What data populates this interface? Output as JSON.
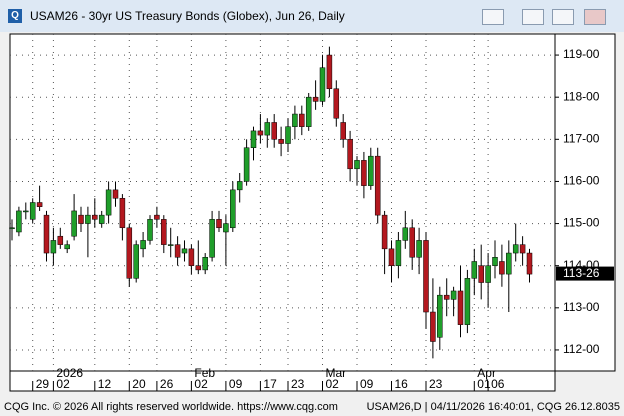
{
  "chart_data": {
    "type": "candlestick",
    "title": "USAM26 - 30yr US Treasury Bonds (Globex), Jun 26, Daily",
    "footer_left": "CQG Inc. © 2026 All rights reserved worldwide. https://www.cqg.com",
    "footer_right": "USAM26,D | 04/11/2026 16:40:01, CQG 26.12.8035",
    "up_color": "#1f9e2a",
    "down_color": "#b3181f",
    "grid": true,
    "categories": [
      null,
      null,
      null,
      "29",
      null,
      null,
      "02",
      null,
      null,
      null,
      null,
      null,
      "12",
      null,
      null,
      null,
      null,
      "20",
      null,
      null,
      null,
      "26",
      null,
      null,
      null,
      null,
      "02",
      null,
      null,
      null,
      null,
      "09",
      null,
      null,
      null,
      null,
      "17",
      null,
      null,
      null,
      "23",
      null,
      null,
      null,
      null,
      "02",
      null,
      null,
      null,
      null,
      "09",
      null,
      null,
      null,
      null,
      "16",
      null,
      null,
      null,
      null,
      "23",
      null,
      null,
      null,
      null,
      null,
      null,
      "01",
      null,
      "06",
      null,
      null,
      null,
      null,
      null,
      null
    ],
    "x_groups": [
      {
        "label": "2026",
        "start": 6
      },
      {
        "label": "Feb",
        "start": 26
      },
      {
        "label": "Mar",
        "start": 45
      },
      {
        "label": "Apr",
        "start": 67
      }
    ],
    "open": [
      114.9,
      114.8,
      115.3,
      115.1,
      115.5,
      115.2,
      114.3,
      114.7,
      114.4,
      114.7,
      115.2,
      115.0,
      115.2,
      115.0,
      115.2,
      115.8,
      115.6,
      114.9,
      113.7,
      114.4,
      114.6,
      115.2,
      115.1,
      114.5,
      114.5,
      114.3,
      114.4,
      114.0,
      113.9,
      114.2,
      115.1,
      114.8,
      114.9,
      115.8,
      116.0,
      116.8,
      117.2,
      117.1,
      117.4,
      117.0,
      116.9,
      117.3,
      117.6,
      117.3,
      118.0,
      117.9,
      119.0,
      118.2,
      117.4,
      117.0,
      116.3,
      116.5,
      115.9,
      116.6,
      115.2,
      114.4,
      114.0,
      114.6,
      114.9,
      114.2,
      114.6,
      112.9,
      112.3,
      113.3,
      113.2,
      113.4,
      112.6,
      113.7,
      114.0,
      113.6,
      114.0,
      114.1,
      113.8,
      114.3,
      114.5,
      114.3
    ],
    "high": [
      115.1,
      115.4,
      115.5,
      115.6,
      115.9,
      115.3,
      114.9,
      114.9,
      114.6,
      115.7,
      115.4,
      115.4,
      115.6,
      115.3,
      116.0,
      116.0,
      115.7,
      115.0,
      114.6,
      114.8,
      115.2,
      115.4,
      115.2,
      114.9,
      114.7,
      114.6,
      114.5,
      114.6,
      114.3,
      115.3,
      115.3,
      115.2,
      116.0,
      116.2,
      117.0,
      117.3,
      117.6,
      117.5,
      117.6,
      117.3,
      117.5,
      117.8,
      117.8,
      118.1,
      118.4,
      119.0,
      119.2,
      118.4,
      117.6,
      117.2,
      116.6,
      116.7,
      116.8,
      116.8,
      115.3,
      114.6,
      114.8,
      115.3,
      115.1,
      114.9,
      114.8,
      113.7,
      113.5,
      113.7,
      113.5,
      114.0,
      113.9,
      114.4,
      114.5,
      114.3,
      114.6,
      114.5,
      114.6,
      115.0,
      114.7,
      114.4
    ],
    "low": [
      114.6,
      114.7,
      115.1,
      115.0,
      115.3,
      114.1,
      114.0,
      114.4,
      114.3,
      114.6,
      114.8,
      114.2,
      114.9,
      114.9,
      115.0,
      115.4,
      114.6,
      113.5,
      113.6,
      114.2,
      114.5,
      114.9,
      114.3,
      114.2,
      114.0,
      114.1,
      113.8,
      113.8,
      113.8,
      114.1,
      114.8,
      114.0,
      114.8,
      115.5,
      115.9,
      116.5,
      116.9,
      116.8,
      116.8,
      116.6,
      116.7,
      117.0,
      117.1,
      117.2,
      117.7,
      117.8,
      118.0,
      117.3,
      116.8,
      116.0,
      115.9,
      115.6,
      115.8,
      115.0,
      113.8,
      113.6,
      113.7,
      114.4,
      113.9,
      113.8,
      112.5,
      111.8,
      112.0,
      112.8,
      112.8,
      112.3,
      112.4,
      113.3,
      113.2,
      113.0,
      113.7,
      113.5,
      112.9,
      114.1,
      114.0,
      113.6
    ],
    "close": [
      114.9,
      115.3,
      115.3,
      115.5,
      115.4,
      114.3,
      114.6,
      114.5,
      114.5,
      115.3,
      115.0,
      115.2,
      115.1,
      115.2,
      115.8,
      115.6,
      114.9,
      113.7,
      114.5,
      114.6,
      115.1,
      115.1,
      114.5,
      114.5,
      114.2,
      114.4,
      114.0,
      113.9,
      114.2,
      115.1,
      114.9,
      115.0,
      115.8,
      116.0,
      116.8,
      117.2,
      117.1,
      117.4,
      117.0,
      116.9,
      117.3,
      117.6,
      117.3,
      118.0,
      117.9,
      118.7,
      118.2,
      117.5,
      117.0,
      116.3,
      116.5,
      115.9,
      116.6,
      115.2,
      114.4,
      114.0,
      114.6,
      114.9,
      114.2,
      114.6,
      112.9,
      112.2,
      113.3,
      113.2,
      113.4,
      112.6,
      113.7,
      114.1,
      113.6,
      114.0,
      114.2,
      113.8,
      114.3,
      114.5,
      114.3,
      113.8
    ],
    "last_price": {
      "value": 113.8125,
      "label": "113-26"
    },
    "ylim": [
      111.5,
      119.5
    ],
    "yticks": [
      {
        "value": 112,
        "label": "112-00"
      },
      {
        "value": 113,
        "label": "113-00"
      },
      {
        "value": 114,
        "label": "114-00"
      },
      {
        "value": 115,
        "label": "115-00"
      },
      {
        "value": 116,
        "label": "116-00"
      },
      {
        "value": 117,
        "label": "117-00"
      },
      {
        "value": 118,
        "label": "118-00"
      },
      {
        "value": 119,
        "label": "119-00"
      }
    ]
  }
}
